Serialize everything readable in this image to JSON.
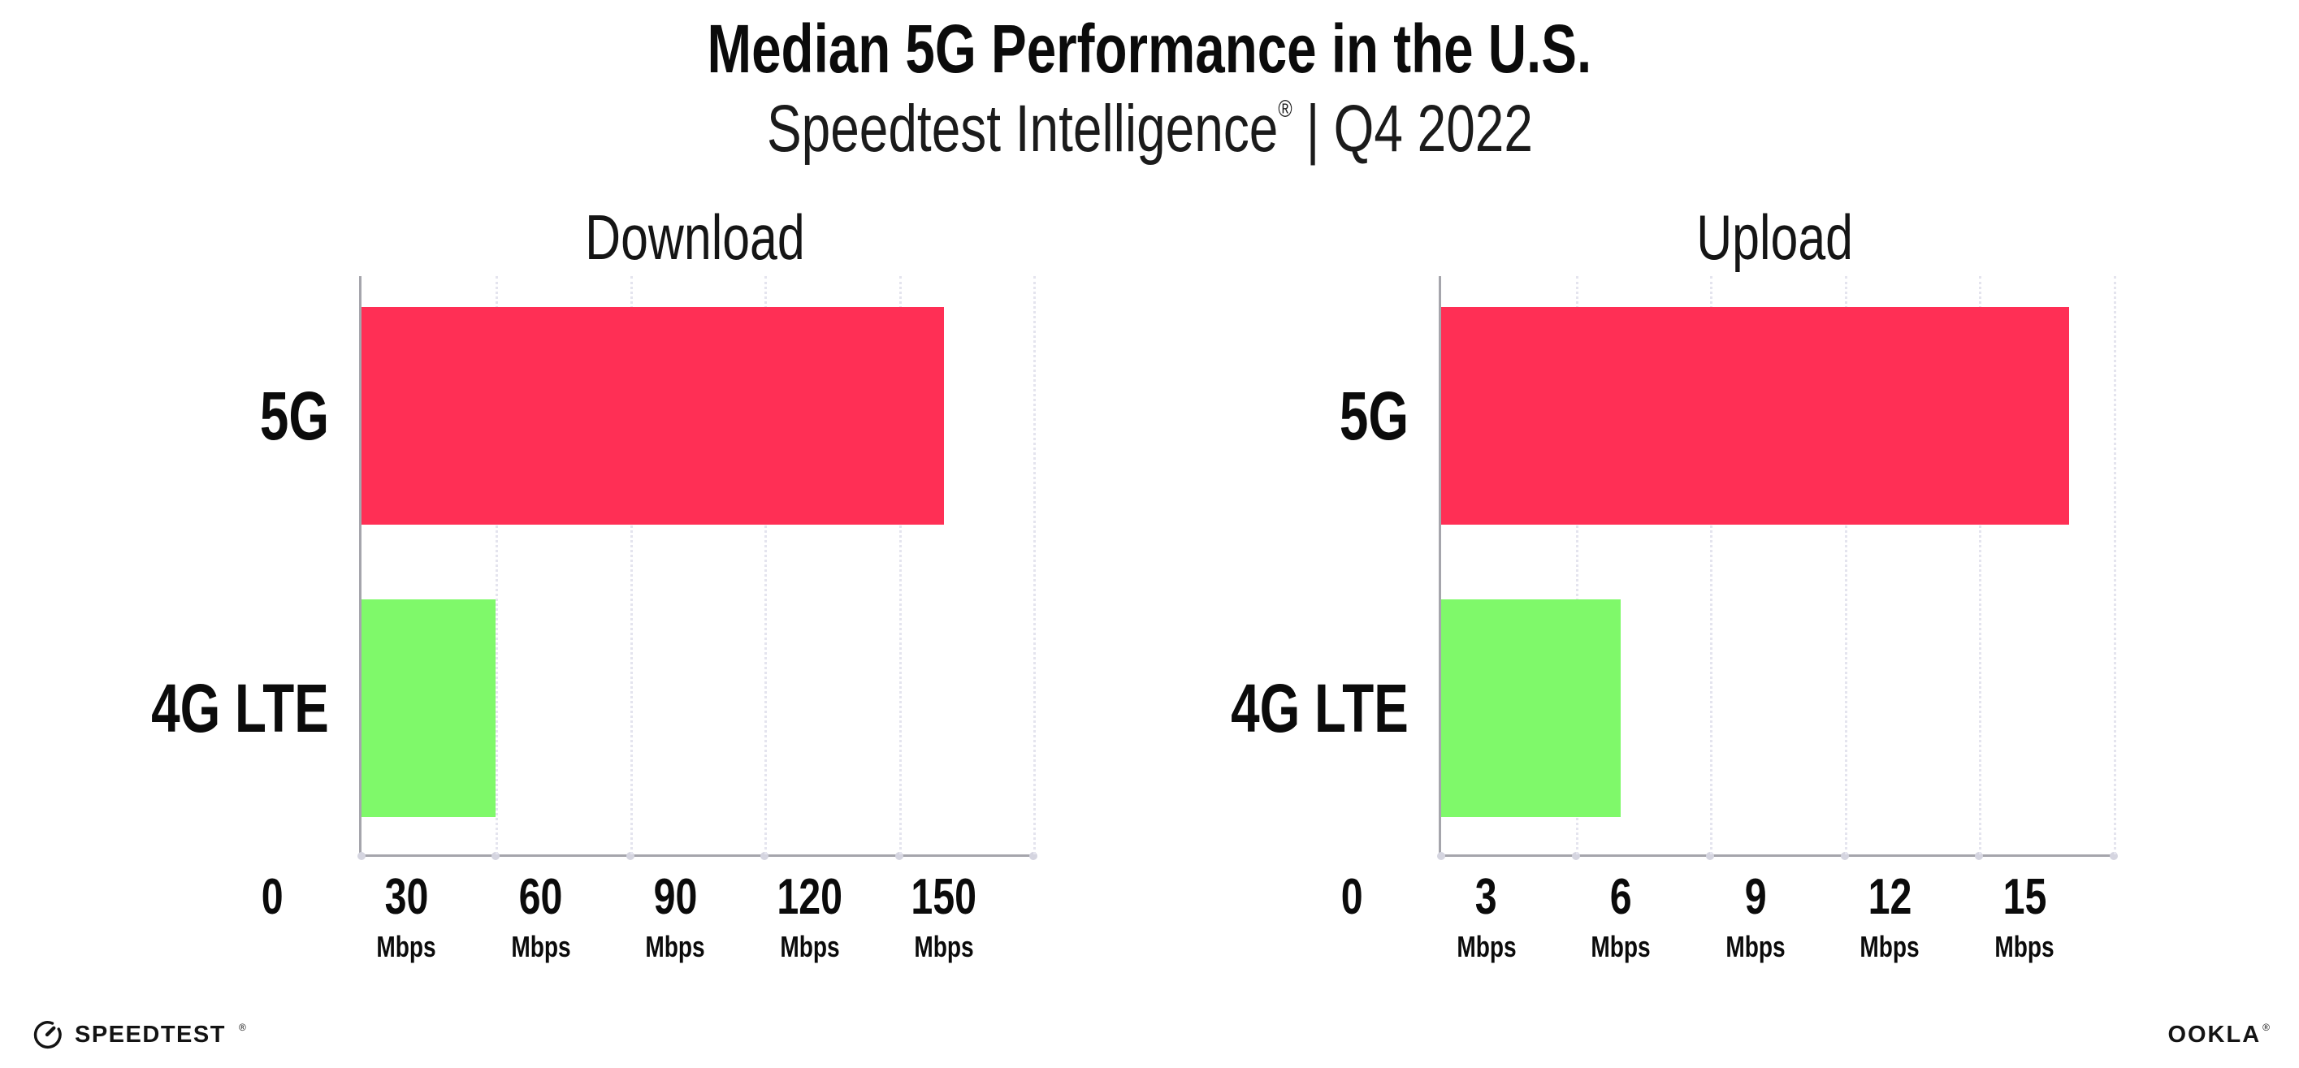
{
  "page": {
    "background": "#FFFFFF"
  },
  "header": {
    "title": "Median 5G Performance in the U.S.",
    "subtitle_brand": "Speedtest Intelligence",
    "subtitle_registered": "®",
    "subtitle_separator": "|",
    "subtitle_period": "Q4 2022"
  },
  "chart_data": [
    {
      "type": "bar",
      "orientation": "horizontal",
      "facet_title": "Download",
      "categories": [
        "5G",
        "4G LTE"
      ],
      "values": [
        130,
        30
      ],
      "value_unit": "Mbps",
      "xlim": [
        0,
        150
      ],
      "xticks": [
        0,
        30,
        60,
        90,
        120,
        150
      ],
      "xtick_unit": "Mbps",
      "bar_colors": [
        "#FF2F55",
        "#7FF96A"
      ],
      "grid": "vertical-dotted",
      "legend_position": "none"
    },
    {
      "type": "bar",
      "orientation": "horizontal",
      "facet_title": "Upload",
      "categories": [
        "5G",
        "4G LTE"
      ],
      "values": [
        14,
        4
      ],
      "value_unit": "Mbps",
      "xlim": [
        0,
        15
      ],
      "xticks": [
        0,
        3,
        6,
        9,
        12,
        15
      ],
      "xtick_unit": "Mbps",
      "bar_colors": [
        "#FF2F55",
        "#7FF96A"
      ],
      "grid": "vertical-dotted",
      "legend_position": "none"
    }
  ],
  "footer": {
    "speedtest_wordmark": "SPEEDTEST",
    "speedtest_registered": "®",
    "ookla_wordmark": "OOKLA",
    "ookla_registered": "®"
  },
  "colors": {
    "bar_5g": "#FF2F55",
    "bar_4g_lte": "#7FF96A",
    "axis_line": "#A5A5AC",
    "gridline": "#E4E4EE",
    "tick_dot": "#D5D5E0",
    "text": "#111111"
  }
}
